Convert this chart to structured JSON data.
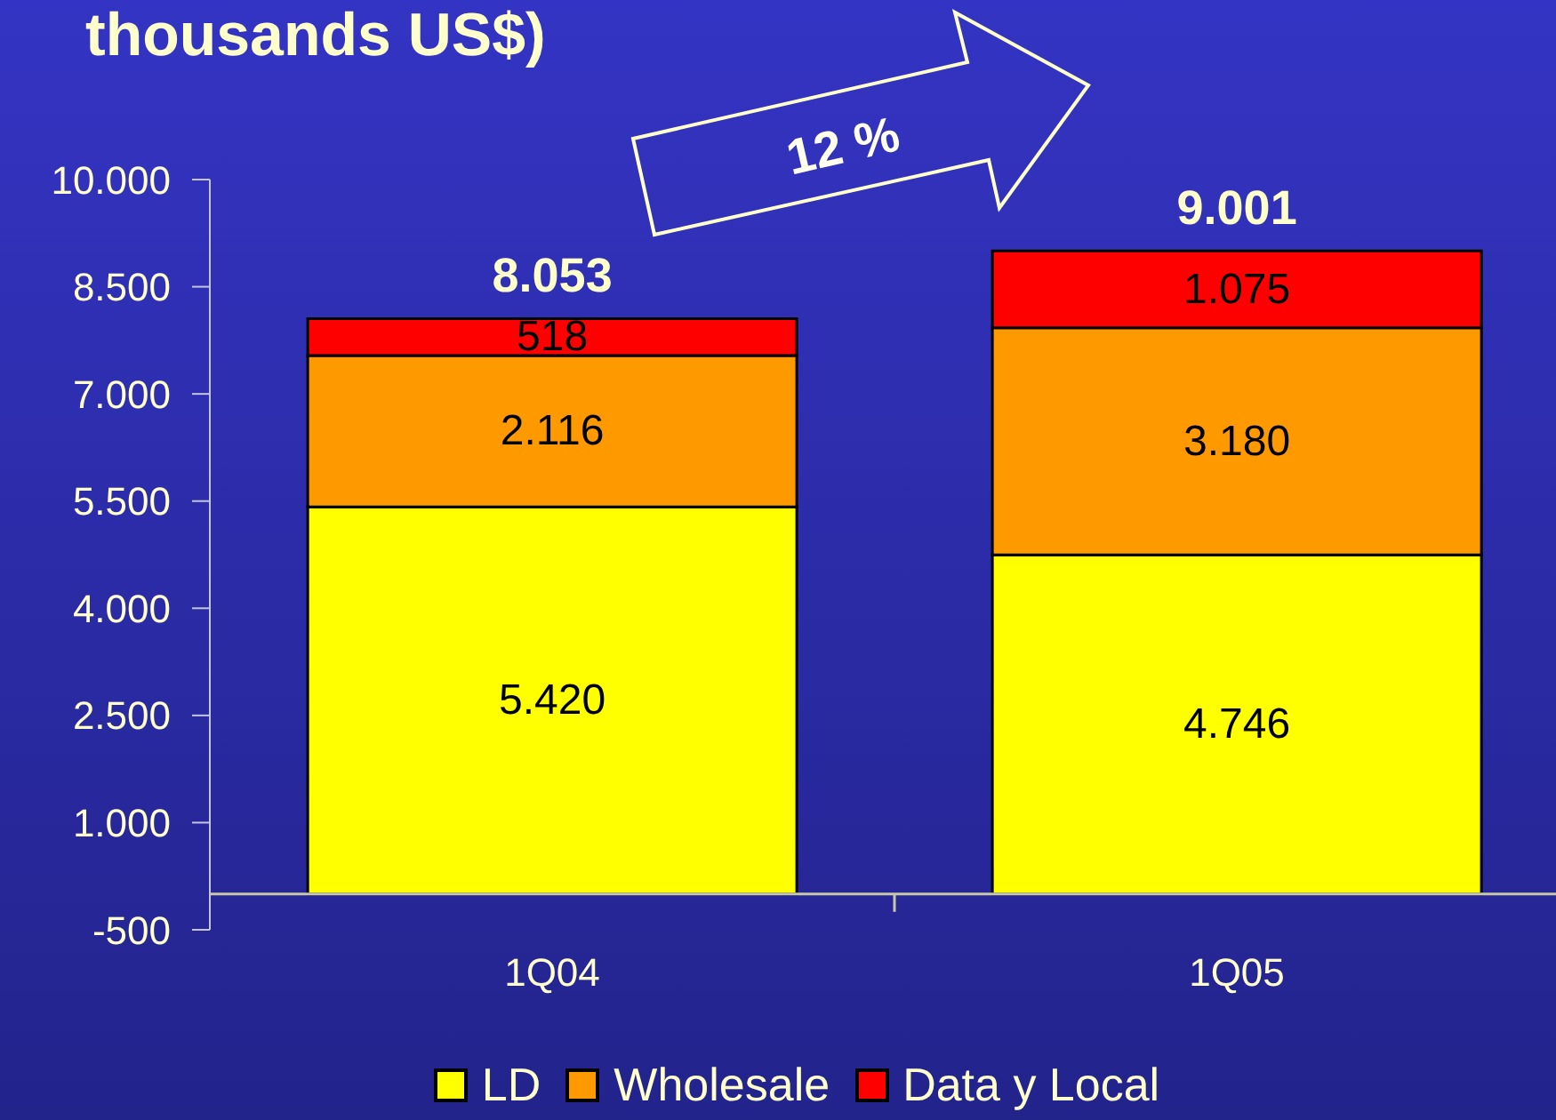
{
  "chart_data": {
    "type": "bar",
    "title": "thousands US$)",
    "categories": [
      "1Q04",
      "1Q05"
    ],
    "series": [
      {
        "name": "LD",
        "color": "#ffff00",
        "values": [
          5420,
          4746
        ],
        "value_labels": [
          "5.420",
          "4.746"
        ]
      },
      {
        "name": "Wholesale",
        "color": "#ff9900",
        "values": [
          2116,
          3180
        ],
        "value_labels": [
          "2.116",
          "3.180"
        ]
      },
      {
        "name": "Data y Local",
        "color": "#ff0000",
        "values": [
          518,
          1075
        ],
        "value_labels": [
          "518",
          "1.075"
        ]
      }
    ],
    "stacked": true,
    "totals": [
      "8.053",
      "9.001"
    ],
    "ylim": [
      -500,
      10000
    ],
    "yticks": [
      -500,
      {
        "value": 1000,
        "label": "1.000"
      },
      {
        "value": 2500,
        "label": "2.500"
      },
      {
        "value": 4000,
        "label": "4.000"
      },
      {
        "value": 5500,
        "label": "5.500"
      },
      {
        "value": 7000,
        "label": "7.000"
      },
      {
        "value": 8500,
        "label": "8.500"
      },
      {
        "value": 10000,
        "label": "10.000"
      }
    ],
    "legend": "bottom",
    "annotations": [
      "12 %"
    ]
  }
}
